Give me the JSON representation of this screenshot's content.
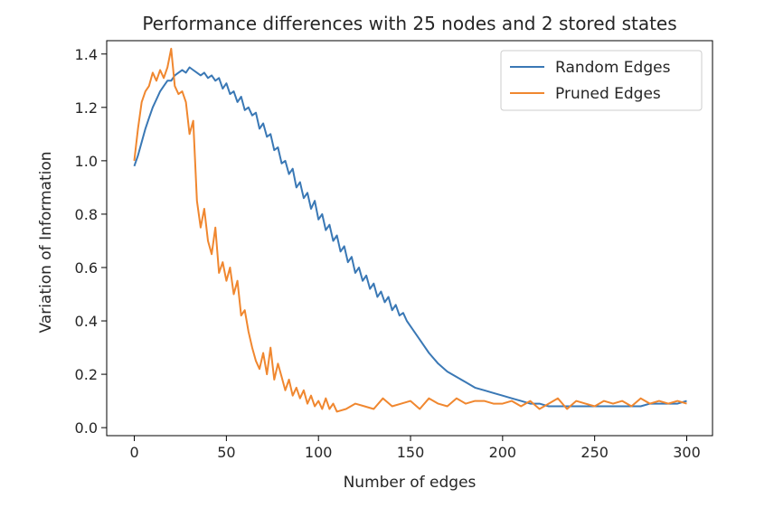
{
  "chart_data": {
    "type": "line",
    "title": "Performance differences with 25 nodes and 2 stored states",
    "xlabel": "Number of edges",
    "ylabel": "Variation of Information",
    "xlim": [
      -15,
      314
    ],
    "ylim": [
      -0.03,
      1.45
    ],
    "xticks": [
      0,
      50,
      100,
      150,
      200,
      250,
      300
    ],
    "yticks": [
      0.0,
      0.2,
      0.4,
      0.6,
      0.8,
      1.0,
      1.2,
      1.4
    ],
    "grid": false,
    "legend_position": "upper right",
    "series": [
      {
        "name": "Random Edges",
        "color": "#3a78b5",
        "x": [
          0,
          2,
          4,
          6,
          8,
          10,
          12,
          14,
          16,
          18,
          20,
          22,
          24,
          26,
          28,
          30,
          32,
          34,
          36,
          38,
          40,
          42,
          44,
          46,
          48,
          50,
          52,
          54,
          56,
          58,
          60,
          62,
          64,
          66,
          68,
          70,
          72,
          74,
          76,
          78,
          80,
          82,
          84,
          86,
          88,
          90,
          92,
          94,
          96,
          98,
          100,
          102,
          104,
          106,
          108,
          110,
          112,
          114,
          116,
          118,
          120,
          122,
          124,
          126,
          128,
          130,
          132,
          134,
          136,
          138,
          140,
          142,
          144,
          146,
          148,
          150,
          155,
          160,
          165,
          170,
          175,
          180,
          185,
          190,
          195,
          200,
          205,
          210,
          215,
          220,
          225,
          230,
          235,
          240,
          245,
          250,
          255,
          260,
          265,
          270,
          275,
          280,
          285,
          290,
          295,
          300
        ],
        "values": [
          0.98,
          1.02,
          1.07,
          1.12,
          1.16,
          1.2,
          1.23,
          1.26,
          1.28,
          1.3,
          1.3,
          1.32,
          1.33,
          1.34,
          1.33,
          1.35,
          1.34,
          1.33,
          1.32,
          1.33,
          1.31,
          1.32,
          1.3,
          1.31,
          1.27,
          1.29,
          1.25,
          1.26,
          1.22,
          1.24,
          1.19,
          1.2,
          1.17,
          1.18,
          1.12,
          1.14,
          1.09,
          1.1,
          1.04,
          1.05,
          0.99,
          1.0,
          0.95,
          0.97,
          0.9,
          0.92,
          0.86,
          0.88,
          0.82,
          0.85,
          0.78,
          0.8,
          0.74,
          0.76,
          0.7,
          0.72,
          0.66,
          0.68,
          0.62,
          0.64,
          0.58,
          0.6,
          0.55,
          0.57,
          0.52,
          0.54,
          0.49,
          0.51,
          0.47,
          0.49,
          0.44,
          0.46,
          0.42,
          0.43,
          0.4,
          0.38,
          0.33,
          0.28,
          0.24,
          0.21,
          0.19,
          0.17,
          0.15,
          0.14,
          0.13,
          0.12,
          0.11,
          0.1,
          0.09,
          0.09,
          0.08,
          0.08,
          0.08,
          0.08,
          0.08,
          0.08,
          0.08,
          0.08,
          0.08,
          0.08,
          0.08,
          0.09,
          0.09,
          0.09,
          0.09,
          0.1
        ]
      },
      {
        "name": "Pruned Edges",
        "color": "#f0872f",
        "x": [
          0,
          2,
          4,
          6,
          8,
          10,
          12,
          14,
          16,
          18,
          20,
          22,
          24,
          26,
          28,
          30,
          32,
          34,
          36,
          38,
          40,
          42,
          44,
          46,
          48,
          50,
          52,
          54,
          56,
          58,
          60,
          62,
          64,
          66,
          68,
          70,
          72,
          74,
          76,
          78,
          80,
          82,
          84,
          86,
          88,
          90,
          92,
          94,
          96,
          98,
          100,
          102,
          104,
          106,
          108,
          110,
          115,
          120,
          125,
          130,
          135,
          140,
          145,
          150,
          155,
          160,
          165,
          170,
          175,
          180,
          185,
          190,
          195,
          200,
          205,
          210,
          215,
          220,
          225,
          230,
          235,
          240,
          245,
          250,
          255,
          260,
          265,
          270,
          275,
          280,
          285,
          290,
          295,
          300
        ],
        "values": [
          1.0,
          1.12,
          1.22,
          1.26,
          1.28,
          1.33,
          1.3,
          1.34,
          1.31,
          1.35,
          1.42,
          1.28,
          1.25,
          1.26,
          1.22,
          1.1,
          1.15,
          0.85,
          0.75,
          0.82,
          0.7,
          0.65,
          0.75,
          0.58,
          0.62,
          0.55,
          0.6,
          0.5,
          0.55,
          0.42,
          0.44,
          0.36,
          0.3,
          0.25,
          0.22,
          0.28,
          0.2,
          0.3,
          0.18,
          0.24,
          0.19,
          0.14,
          0.18,
          0.12,
          0.15,
          0.11,
          0.14,
          0.09,
          0.12,
          0.08,
          0.1,
          0.07,
          0.11,
          0.07,
          0.09,
          0.06,
          0.07,
          0.09,
          0.08,
          0.07,
          0.11,
          0.08,
          0.09,
          0.1,
          0.07,
          0.11,
          0.09,
          0.08,
          0.11,
          0.09,
          0.1,
          0.1,
          0.09,
          0.09,
          0.1,
          0.08,
          0.1,
          0.07,
          0.09,
          0.11,
          0.07,
          0.1,
          0.09,
          0.08,
          0.1,
          0.09,
          0.1,
          0.08,
          0.11,
          0.09,
          0.1,
          0.09,
          0.1,
          0.09
        ]
      }
    ]
  }
}
